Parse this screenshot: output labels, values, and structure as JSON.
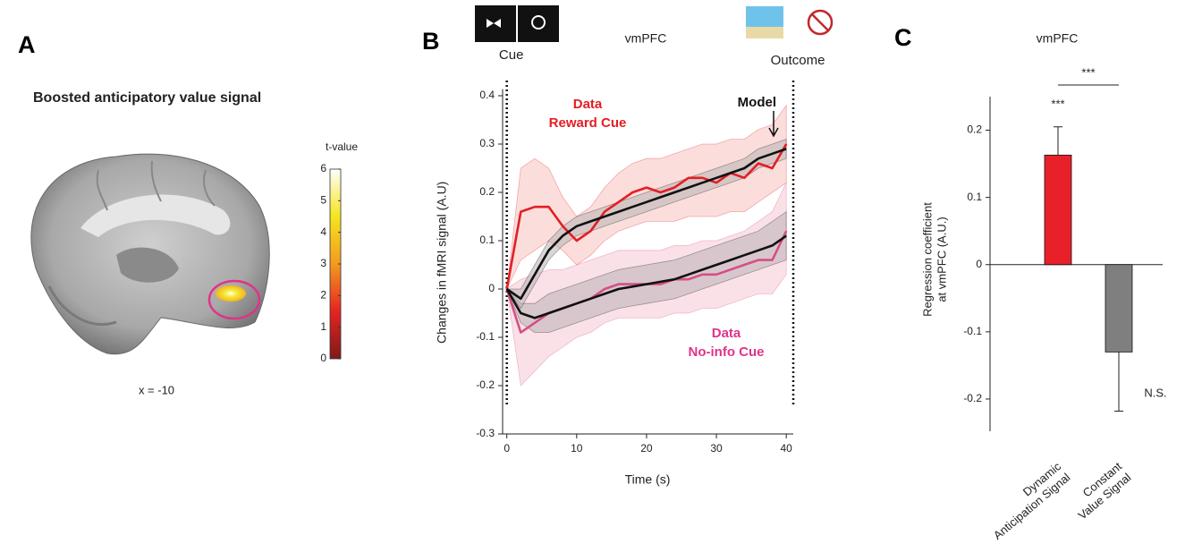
{
  "chart_data": [
    {
      "panel_label": "A",
      "type": "colorbar",
      "title": "Boosted anticipatory value signal",
      "annotation": "x = -10",
      "colorbar_label": "t-value",
      "ylim": [
        0,
        6
      ],
      "yticks": [
        0,
        1,
        2,
        3,
        4,
        5,
        6
      ],
      "colors": [
        "#7d1a1a",
        "#e52421",
        "#f39a1f",
        "#f4e51e",
        "#ffffff"
      ]
    },
    {
      "panel_label": "B",
      "type": "line",
      "title": "vmPFC",
      "x_label": "Time (s)",
      "y_label": "Changes in fMRI signal (A.U)",
      "xlim": [
        -0.6,
        41
      ],
      "xticks": [
        0,
        10,
        20,
        30,
        40
      ],
      "ylim": [
        -0.3,
        0.41
      ],
      "yticks": [
        -0.3,
        -0.2,
        -0.1,
        0,
        0.1,
        0.2,
        0.3,
        0.4
      ],
      "events": [
        {
          "x": 0,
          "label": "Cue"
        },
        {
          "x": 41,
          "label": "Outcome"
        }
      ],
      "x": [
        0,
        2,
        4,
        6,
        8,
        10,
        12,
        14,
        16,
        18,
        20,
        22,
        24,
        26,
        28,
        30,
        32,
        34,
        36,
        38,
        40
      ],
      "series": [
        {
          "color": "#d64f86",
          "band_color": "#f5c9d6",
          "values": [
            0,
            -0.09,
            -0.07,
            -0.05,
            -0.04,
            -0.03,
            -0.02,
            0,
            0.01,
            0.01,
            0.01,
            0.01,
            0.02,
            0.02,
            0.03,
            0.03,
            0.04,
            0.05,
            0.06,
            0.06,
            0.12
          ],
          "lower": [
            0,
            -0.2,
            -0.17,
            -0.14,
            -0.12,
            -0.1,
            -0.09,
            -0.07,
            -0.06,
            -0.06,
            -0.06,
            -0.06,
            -0.05,
            -0.05,
            -0.04,
            -0.04,
            -0.03,
            -0.02,
            -0.01,
            -0.01,
            0.03
          ],
          "upper": [
            0,
            0.02,
            0.03,
            0.04,
            0.04,
            0.05,
            0.06,
            0.07,
            0.08,
            0.08,
            0.08,
            0.08,
            0.09,
            0.09,
            0.1,
            0.1,
            0.11,
            0.12,
            0.14,
            0.16,
            0.22
          ]
        },
        {
          "color": "#e31e24",
          "band_color": "#f7c3c0",
          "values": [
            0,
            0.16,
            0.17,
            0.17,
            0.13,
            0.1,
            0.12,
            0.16,
            0.18,
            0.2,
            0.21,
            0.2,
            0.21,
            0.23,
            0.23,
            0.22,
            0.24,
            0.23,
            0.26,
            0.25,
            0.3
          ],
          "lower": [
            0,
            0.06,
            0.08,
            0.1,
            0.08,
            0.05,
            0.07,
            0.1,
            0.12,
            0.13,
            0.14,
            0.14,
            0.14,
            0.15,
            0.15,
            0.15,
            0.16,
            0.16,
            0.18,
            0.2,
            0.22
          ],
          "upper": [
            0,
            0.25,
            0.27,
            0.25,
            0.19,
            0.15,
            0.17,
            0.21,
            0.24,
            0.26,
            0.27,
            0.27,
            0.28,
            0.29,
            0.3,
            0.3,
            0.31,
            0.31,
            0.33,
            0.34,
            0.38
          ]
        },
        {
          "color": "#111111",
          "band_color": "#b9b2b4",
          "values": [
            0,
            -0.05,
            -0.06,
            -0.05,
            -0.04,
            -0.03,
            -0.02,
            -0.01,
            0,
            0.005,
            0.01,
            0.015,
            0.02,
            0.03,
            0.04,
            0.05,
            0.06,
            0.07,
            0.08,
            0.09,
            0.11
          ],
          "lower": [
            0,
            -0.07,
            -0.09,
            -0.09,
            -0.08,
            -0.07,
            -0.06,
            -0.05,
            -0.04,
            -0.035,
            -0.03,
            -0.025,
            -0.02,
            -0.01,
            0,
            0.01,
            0.02,
            0.03,
            0.04,
            0.05,
            0.06
          ],
          "upper": [
            0,
            -0.03,
            -0.03,
            -0.01,
            0,
            0.01,
            0.02,
            0.03,
            0.04,
            0.045,
            0.05,
            0.055,
            0.06,
            0.07,
            0.08,
            0.09,
            0.1,
            0.11,
            0.12,
            0.14,
            0.16
          ]
        },
        {
          "color": "#111111",
          "band_color": "#b9b2b4",
          "values": [
            0,
            -0.02,
            0.03,
            0.08,
            0.11,
            0.13,
            0.14,
            0.15,
            0.16,
            0.17,
            0.18,
            0.19,
            0.2,
            0.21,
            0.22,
            0.23,
            0.24,
            0.25,
            0.27,
            0.28,
            0.29
          ],
          "lower": [
            0,
            -0.04,
            0.01,
            0.06,
            0.09,
            0.11,
            0.12,
            0.13,
            0.14,
            0.15,
            0.16,
            0.17,
            0.18,
            0.19,
            0.2,
            0.21,
            0.22,
            0.23,
            0.25,
            0.26,
            0.27
          ],
          "upper": [
            0,
            0,
            0.05,
            0.1,
            0.13,
            0.15,
            0.16,
            0.17,
            0.18,
            0.19,
            0.2,
            0.21,
            0.22,
            0.23,
            0.24,
            0.25,
            0.26,
            0.27,
            0.29,
            0.3,
            0.31
          ]
        }
      ],
      "annotations": [
        {
          "lines": [
            "Data",
            "Reward Cue"
          ],
          "color": "#e31e24"
        },
        {
          "lines": [
            "Model"
          ],
          "color": "#111111"
        },
        {
          "lines": [
            "Data",
            "No-info Cue"
          ],
          "color": "#e0338a"
        }
      ]
    },
    {
      "panel_label": "C",
      "type": "bar",
      "title": "vmPFC",
      "y_label": [
        "Regression coefficient",
        "at vmPFC (A.U.)"
      ],
      "categories": [
        [
          "Dynamic",
          "Anticipation Signal"
        ],
        [
          "Constant",
          "Value Signal"
        ]
      ],
      "values": [
        0.163,
        -0.13
      ],
      "errors": [
        0.042,
        0.088
      ],
      "colors": [
        "#e8202a",
        "#7f7f80"
      ],
      "ylim": [
        -0.248,
        0.25
      ],
      "yticks": [
        -0.2,
        -0.1,
        0,
        0.1,
        0.2
      ],
      "significance": [
        "***",
        "N.S."
      ],
      "comparison": "***"
    }
  ]
}
